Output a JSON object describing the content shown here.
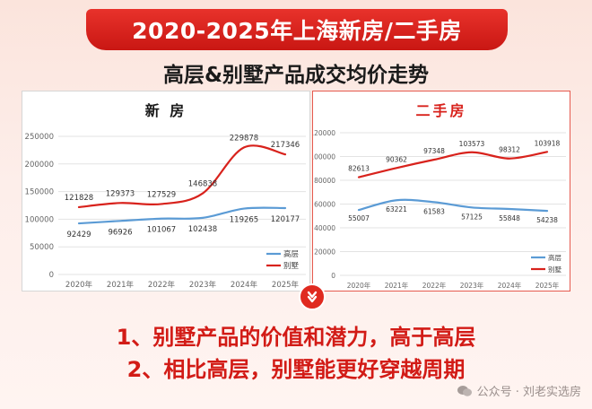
{
  "header": {
    "banner_title": "2020-2025年上海新房/二手房",
    "subtitle": "高层&别墅产品成交均价走势"
  },
  "colors": {
    "high_rise": "#5b9bd5",
    "villa": "#d8221c",
    "accent": "#e02a20"
  },
  "chart_data": [
    {
      "type": "line",
      "title": "新 房",
      "categories": [
        "2020年",
        "2021年",
        "2022年",
        "2023年",
        "2024年",
        "2025年"
      ],
      "ylim": [
        0,
        250000
      ],
      "yticks": [
        "0",
        "50000",
        "100000",
        "150000",
        "200000",
        "250000"
      ],
      "grid": true,
      "legend": "bottom-right",
      "series": [
        {
          "name": "高层",
          "color": "#5b9bd5",
          "values": [
            92429,
            96926,
            101067,
            102438,
            119265,
            120177
          ]
        },
        {
          "name": "别墅",
          "color": "#d8221c",
          "values": [
            121828,
            129373,
            127529,
            146838,
            229878,
            217346
          ]
        }
      ]
    },
    {
      "type": "line",
      "title": "二手房",
      "categories": [
        "2020年",
        "2021年",
        "2022年",
        "2023年",
        "2024年",
        "2025年"
      ],
      "ylim": [
        0,
        120000
      ],
      "yticks": [
        "0",
        "20000",
        "40000",
        "60000",
        "80000",
        "100000",
        "120000"
      ],
      "grid": true,
      "legend": "bottom-right",
      "series": [
        {
          "name": "高层",
          "color": "#5b9bd5",
          "values": [
            55007,
            63221,
            61583,
            57125,
            55848,
            54238
          ]
        },
        {
          "name": "别墅",
          "color": "#d8221c",
          "values": [
            82613,
            90362,
            97348,
            103573,
            98312,
            103918
          ]
        }
      ]
    }
  ],
  "takeaways": {
    "line1": "1、别墅产品的价值和潜力，高于高层",
    "line2": "2、相比高层，别墅能更好穿越周期"
  },
  "watermark": {
    "text": "公众号 · 刘老实选房",
    "icon": "wechat-icon"
  }
}
